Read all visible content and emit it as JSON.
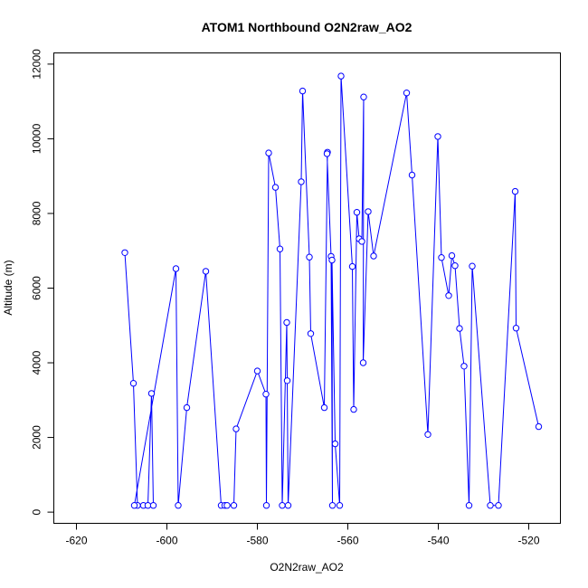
{
  "chart_data": {
    "type": "line",
    "title": "ATOM1 Northbound O2N2raw_AO2",
    "xlabel": "O2N2raw_AO2",
    "ylabel": "Altitude (m)",
    "xlim": [
      -625,
      -513
    ],
    "ylim": [
      -300,
      12300
    ],
    "x_ticks": [
      -620,
      -600,
      -580,
      -560,
      -540,
      -520
    ],
    "y_ticks": [
      0,
      2000,
      4000,
      6000,
      8000,
      10000,
      12000
    ],
    "series_color": "#0000ff",
    "marker": "open-circle",
    "x": [
      -609.3,
      -607.4,
      -606.5,
      -605.2,
      -604.2,
      -603.4,
      -603,
      -607.2,
      -598,
      -597.5,
      -595.6,
      -591.4,
      -588,
      -587.2,
      -586.7,
      -585.2,
      -584.7,
      -580,
      -578.1,
      -578,
      -577.5,
      -576,
      -575,
      -574.5,
      -573.5,
      -573.4,
      -573.2,
      -570.3,
      -570,
      -568.5,
      -568.2,
      -565.2,
      -564.5,
      -564.6,
      -563.7,
      -563.4,
      -563.5,
      -562.8,
      -561.8,
      -561.5,
      -559,
      -558.7,
      -558,
      -557.5,
      -556.9,
      -556.5,
      -556.6,
      -555.5,
      -554.3,
      -547,
      -545.8,
      -542.3,
      -540.1,
      -539.3,
      -537.7,
      -537,
      -536.3,
      -535.3,
      -534.3,
      -533.2,
      -532.5,
      -528.5,
      -526.7,
      -523,
      -522.8,
      -517.8
    ],
    "y": [
      6950,
      3450,
      180,
      180,
      180,
      3180,
      180,
      180,
      6520,
      180,
      2800,
      6450,
      180,
      180,
      180,
      180,
      2230,
      3780,
      3160,
      180,
      9620,
      8700,
      7050,
      180,
      5080,
      3520,
      180,
      8850,
      11280,
      6830,
      4780,
      2800,
      9640,
      9600,
      6850,
      180,
      6750,
      1830,
      180,
      11680,
      6580,
      2750,
      8030,
      7320,
      7250,
      11120,
      4000,
      8050,
      6860,
      11230,
      9030,
      2080,
      10060,
      6820,
      5800,
      6870,
      6600,
      4920,
      3910,
      180,
      6590,
      180,
      180,
      8590,
      4930,
      2290
    ]
  }
}
